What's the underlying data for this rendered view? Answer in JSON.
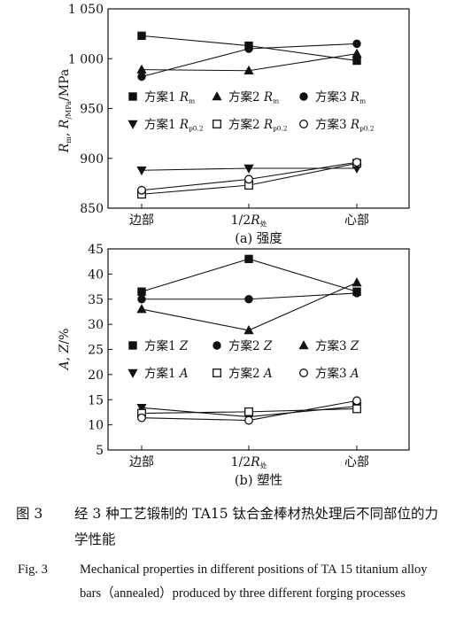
{
  "chart_data": [
    {
      "id": "a",
      "type": "line",
      "title": "(a) 强度",
      "ylabel": "Rm, Rp0.2/MPa",
      "ylabel_parts": [
        "R",
        "m",
        ", R",
        "p0.2",
        "/MPa"
      ],
      "categories": [
        "边部",
        "1/2R处",
        "心部"
      ],
      "category_parts": [
        [
          "边部"
        ],
        [
          "1/2",
          "R",
          "处"
        ],
        [
          "心部"
        ]
      ],
      "ylim": [
        850,
        1050
      ],
      "yticks": [
        850,
        900,
        950,
        1000,
        1050
      ],
      "ytick_labels": [
        "850",
        "900",
        "950",
        "1 000",
        "1 050"
      ],
      "legend_position": "center",
      "grid": false,
      "series": [
        {
          "name": "方案1 Rm",
          "label_parts": [
            "方案1 ",
            "R",
            "m"
          ],
          "marker": "square-filled",
          "values": [
            1023,
            1013,
            998
          ]
        },
        {
          "name": "方案2 Rm",
          "label_parts": [
            "方案2 ",
            "R",
            "m"
          ],
          "marker": "triangle-up-filled",
          "values": [
            989,
            988,
            1005
          ]
        },
        {
          "name": "方案3 Rm",
          "label_parts": [
            "方案3 ",
            "R",
            "m"
          ],
          "marker": "circle-filled",
          "values": [
            982,
            1010,
            1015
          ]
        },
        {
          "name": "方案1 Rp0.2",
          "label_parts": [
            "方案1 ",
            "R",
            "p0.2"
          ],
          "marker": "triangle-down-filled",
          "values": [
            888,
            890,
            890
          ]
        },
        {
          "name": "方案2 Rp0.2",
          "label_parts": [
            "方案2 ",
            "R",
            "p0.2"
          ],
          "marker": "square-open",
          "values": [
            864,
            873,
            895
          ]
        },
        {
          "name": "方案3 Rp0.2",
          "label_parts": [
            "方案3 ",
            "R",
            "p0.2"
          ],
          "marker": "circle-open",
          "values": [
            868,
            879,
            896
          ]
        }
      ]
    },
    {
      "id": "b",
      "type": "line",
      "title": "(b) 塑性",
      "ylabel": "A, Z/%",
      "ylabel_parts": [
        "A",
        ", ",
        "Z",
        "/%"
      ],
      "categories": [
        "边部",
        "1/2R处",
        "心部"
      ],
      "category_parts": [
        [
          "边部"
        ],
        [
          "1/2",
          "R",
          "处"
        ],
        [
          "心部"
        ]
      ],
      "ylim": [
        5,
        45
      ],
      "yticks": [
        5,
        10,
        15,
        20,
        25,
        30,
        35,
        40,
        45
      ],
      "ytick_labels": [
        "5",
        "10",
        "15",
        "20",
        "25",
        "30",
        "35",
        "40",
        "45"
      ],
      "legend_position": "center",
      "grid": false,
      "series": [
        {
          "name": "方案1 Z",
          "label_parts": [
            "方案1 ",
            "Z",
            ""
          ],
          "marker": "square-filled",
          "values": [
            36.5,
            43,
            36.5
          ]
        },
        {
          "name": "方案2 Z",
          "label_parts": [
            "方案2 ",
            "Z",
            ""
          ],
          "marker": "circle-filled",
          "values": [
            35,
            35,
            36.2
          ]
        },
        {
          "name": "方案3 Z",
          "label_parts": [
            "方案3 ",
            "Z",
            ""
          ],
          "marker": "triangle-up-filled",
          "values": [
            33,
            28.8,
            38.3
          ]
        },
        {
          "name": "方案1 A",
          "label_parts": [
            "方案1 ",
            "A",
            ""
          ],
          "marker": "triangle-down-filled",
          "values": [
            13.4,
            11.6,
            13.7
          ]
        },
        {
          "name": "方案2 A",
          "label_parts": [
            "方案2 ",
            "A",
            ""
          ],
          "marker": "square-open",
          "values": [
            12.3,
            12.6,
            13.2
          ]
        },
        {
          "name": "方案3 A",
          "label_parts": [
            "方案3 ",
            "A",
            ""
          ],
          "marker": "circle-open",
          "values": [
            11.4,
            10.9,
            14.8
          ]
        }
      ]
    }
  ],
  "caption": {
    "cn_label": "图 3",
    "cn_text": "经 3 种工艺锻制的 TA15 钛合金棒材热处理后不同部位的力学性能",
    "en_label": "Fig. 3",
    "en_text": "Mechanical properties in different positions of TA 15 titanium alloy bars（annealed）produced by three different forging processes"
  }
}
